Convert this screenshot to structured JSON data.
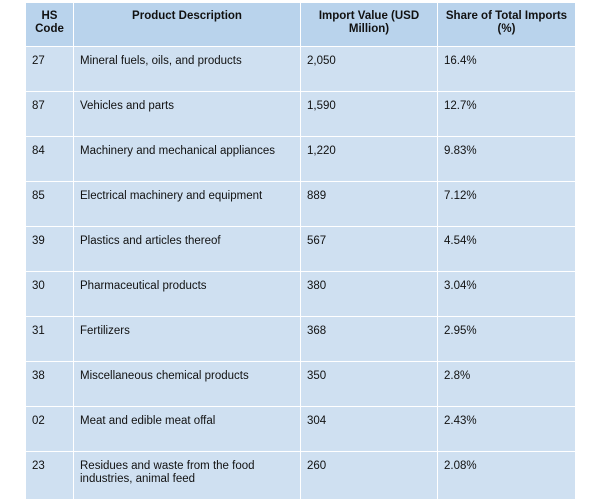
{
  "table": {
    "headers": {
      "hs_code": "HS Code",
      "description": "Product Description",
      "import_value": "Import Value (USD Million)",
      "share": "Share of Total Imports (%)"
    },
    "rows": [
      {
        "code": "27",
        "description": "Mineral fuels, oils, and products",
        "value": "2,050",
        "share": "16.4%"
      },
      {
        "code": "87",
        "description": "Vehicles and parts",
        "value": "1,590",
        "share": "12.7%"
      },
      {
        "code": "84",
        "description": "Machinery and mechanical appliances",
        "value": "1,220",
        "share": "9.83%"
      },
      {
        "code": "85",
        "description": "Electrical machinery and equipment",
        "value": "889",
        "share": "7.12%"
      },
      {
        "code": "39",
        "description": "Plastics and articles thereof",
        "value": "567",
        "share": "4.54%"
      },
      {
        "code": "30",
        "description": "Pharmaceutical products",
        "value": "380",
        "share": "3.04%"
      },
      {
        "code": "31",
        "description": "Fertilizers",
        "value": "368",
        "share": "2.95%"
      },
      {
        "code": "38",
        "description": "Miscellaneous chemical products",
        "value": "350",
        "share": "2.8%"
      },
      {
        "code": "02",
        "description": "Meat and edible meat offal",
        "value": "304",
        "share": "2.43%"
      },
      {
        "code": "23",
        "description": "Residues and waste from the food industries, animal feed",
        "value": "260",
        "share": "2.08%"
      }
    ]
  },
  "colors": {
    "header_background": "#b9d3ec",
    "cell_background": "#cfe0f1",
    "grid_lines": "#ffffff"
  }
}
